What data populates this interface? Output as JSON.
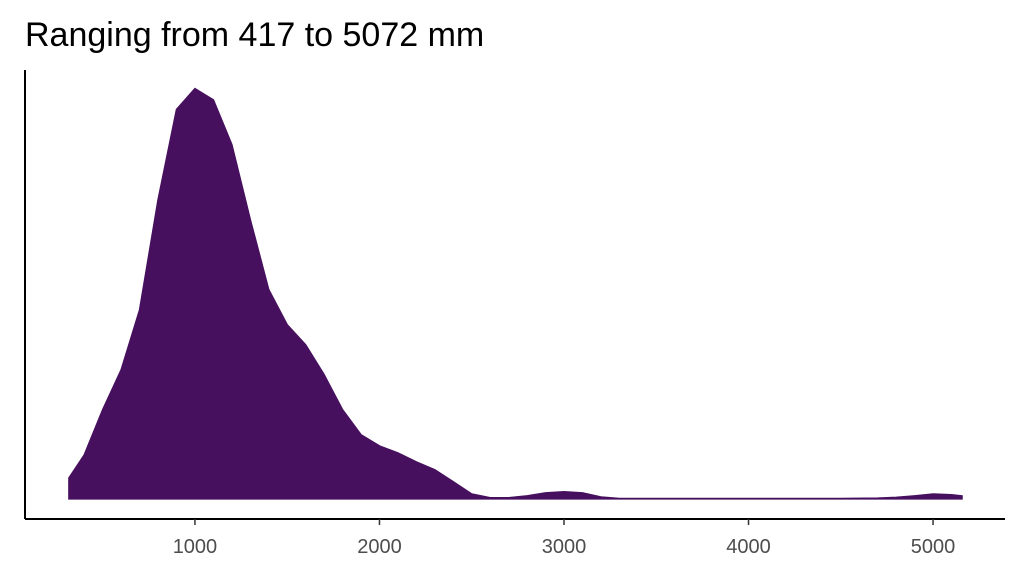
{
  "chart_data": {
    "type": "area",
    "title": "Ranging from 417 to 5072 mm",
    "x": [
      317,
      400,
      500,
      600,
      700,
      800,
      900,
      1000,
      1100,
      1200,
      1300,
      1400,
      1500,
      1600,
      1700,
      1800,
      1900,
      2000,
      2100,
      2200,
      2300,
      2400,
      2500,
      2600,
      2700,
      2800,
      2900,
      3000,
      3100,
      3200,
      3300,
      3500,
      3700,
      3900,
      4100,
      4300,
      4500,
      4700,
      4800,
      4900,
      5000,
      5100,
      5157
    ],
    "values": [
      5.6e-05,
      0.000118,
      0.000239,
      0.000346,
      0.000507,
      0.000802,
      0.001044,
      0.0011,
      0.00107,
      0.00095,
      0.000749,
      0.000561,
      0.000467,
      0.000413,
      0.000333,
      0.000239,
      0.000172,
      0.000142,
      0.000123,
      9.9e-05,
      7.8e-05,
      4.6e-05,
      1.3e-05,
      3e-06,
      3e-06,
      8e-06,
      1.6e-05,
      1.9e-05,
      1.6e-05,
      5e-06,
      1e-06,
      1e-06,
      1e-06,
      1e-06,
      1e-06,
      1e-06,
      1e-06,
      2e-06,
      4e-06,
      8e-06,
      1.3e-05,
      1.1e-05,
      8e-06
    ],
    "color": "#47105f",
    "xlim": [
      79,
      5390
    ],
    "xticks": [
      1000,
      2000,
      3000,
      4000,
      5000
    ],
    "ylim": [
      -5.4e-05,
      0.00115
    ]
  }
}
